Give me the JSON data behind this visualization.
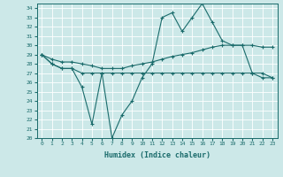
{
  "xlabel": "Humidex (Indice chaleur)",
  "background_color": "#cce8e8",
  "line_color": "#1a6b6b",
  "xlim": [
    -0.5,
    23.5
  ],
  "ylim": [
    20,
    34.5
  ],
  "yticks": [
    20,
    21,
    22,
    23,
    24,
    25,
    26,
    27,
    28,
    29,
    30,
    31,
    32,
    33,
    34
  ],
  "xticks": [
    0,
    1,
    2,
    3,
    4,
    5,
    6,
    7,
    8,
    9,
    10,
    11,
    12,
    13,
    14,
    15,
    16,
    17,
    18,
    19,
    20,
    21,
    22,
    23
  ],
  "line1_x": [
    0,
    1,
    2,
    3,
    4,
    5,
    6,
    7,
    8,
    9,
    10,
    11,
    12,
    13,
    14,
    15,
    16,
    17,
    18,
    19,
    20,
    21,
    22,
    23
  ],
  "line1_y": [
    29.0,
    28.0,
    27.5,
    27.5,
    25.5,
    21.5,
    27.0,
    20.0,
    22.5,
    24.0,
    26.5,
    28.0,
    33.0,
    33.5,
    31.5,
    33.0,
    34.5,
    32.5,
    30.5,
    30.0,
    30.0,
    27.0,
    27.0,
    26.5
  ],
  "line2_x": [
    0,
    1,
    2,
    3,
    4,
    5,
    6,
    7,
    8,
    9,
    10,
    11,
    12,
    13,
    14,
    15,
    16,
    17,
    18,
    19,
    20,
    21,
    22,
    23
  ],
  "line2_y": [
    29.0,
    28.5,
    28.2,
    28.2,
    28.0,
    27.8,
    27.5,
    27.5,
    27.5,
    27.8,
    28.0,
    28.2,
    28.5,
    28.8,
    29.0,
    29.2,
    29.5,
    29.8,
    30.0,
    30.0,
    30.0,
    30.0,
    29.8,
    29.8
  ],
  "line3_x": [
    0,
    1,
    2,
    3,
    4,
    5,
    6,
    7,
    8,
    9,
    10,
    11,
    12,
    13,
    14,
    15,
    16,
    17,
    18,
    19,
    20,
    21,
    22,
    23
  ],
  "line3_y": [
    29.0,
    28.0,
    27.5,
    27.5,
    27.0,
    27.0,
    27.0,
    27.0,
    27.0,
    27.0,
    27.0,
    27.0,
    27.0,
    27.0,
    27.0,
    27.0,
    27.0,
    27.0,
    27.0,
    27.0,
    27.0,
    27.0,
    26.5,
    26.5
  ]
}
